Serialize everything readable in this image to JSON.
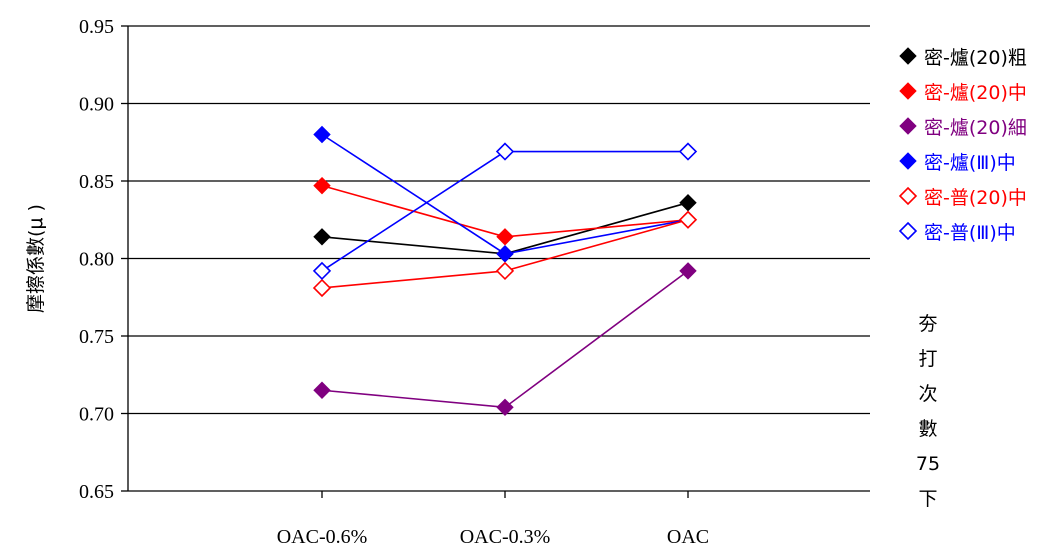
{
  "chart_data": {
    "type": "line",
    "ylabel": "摩擦係數(μ )",
    "xlabel": "",
    "categories": [
      "OAC-0.6%",
      "OAC-0.3%",
      "OAC"
    ],
    "ylim": [
      0.65,
      0.95
    ],
    "y_ticks": [
      "0.65",
      "0.70",
      "0.75",
      "0.80",
      "0.85",
      "0.90",
      "0.95"
    ],
    "grid": "horizontal",
    "legend_position": "right",
    "side_note": [
      "夯",
      "打",
      "次",
      "數",
      "75",
      "下"
    ],
    "series": [
      {
        "name": "密-爐(20)粗",
        "values": [
          0.814,
          0.803,
          0.836
        ],
        "color": "#000000",
        "marker": "diamond-filled"
      },
      {
        "name": "密-爐(20)中",
        "values": [
          0.847,
          0.814,
          0.825
        ],
        "color": "#ff0000",
        "marker": "diamond-filled"
      },
      {
        "name": "密-爐(20)細",
        "values": [
          0.715,
          0.704,
          0.792
        ],
        "color": "#800080",
        "marker": "diamond-filled"
      },
      {
        "name": "密-爐(Ⅲ)中",
        "values": [
          0.88,
          0.803,
          0.825
        ],
        "color": "#0000ff",
        "marker": "diamond-filled"
      },
      {
        "name": "密-普(20)中",
        "values": [
          0.781,
          0.792,
          0.825
        ],
        "color": "#ff0000",
        "marker": "diamond-open"
      },
      {
        "name": "密-普(Ⅲ)中",
        "values": [
          0.792,
          0.869,
          0.869
        ],
        "color": "#0000ff",
        "marker": "diamond-open"
      }
    ]
  }
}
